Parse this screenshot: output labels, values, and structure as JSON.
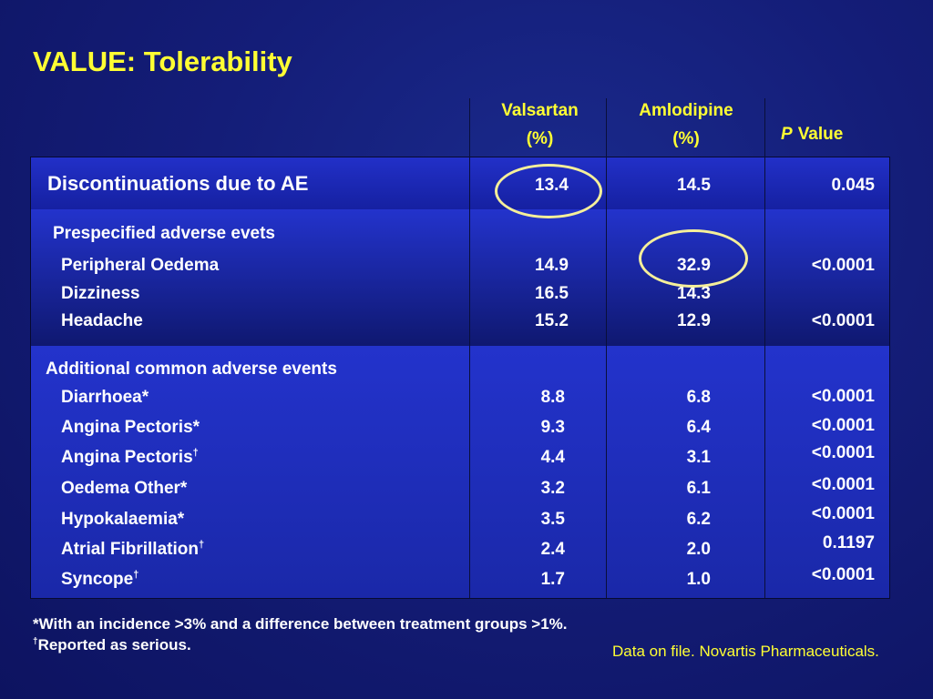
{
  "title": "VALUE: Tolerability",
  "columns": {
    "valsartan": [
      "Valsartan",
      "(%)"
    ],
    "amlodipine": [
      "Amlodipine",
      "(%)"
    ],
    "p_italic": "P",
    "p_rest": "Value"
  },
  "sections": {
    "discontinuations": {
      "label": "Discontinuations due to AE",
      "valsartan": "13.4",
      "amlodipine": "14.5",
      "p": "0.045"
    },
    "prespecified": {
      "label": "Prespecified adverse evets",
      "rows": [
        {
          "label": "Peripheral Oedema",
          "valsartan": "14.9",
          "amlodipine": "32.9",
          "p": "<0.0001"
        },
        {
          "label": "Dizziness",
          "valsartan": "16.5",
          "amlodipine": "14.3",
          "p": ""
        },
        {
          "label": "Headache",
          "valsartan": "15.2",
          "amlodipine": "12.9",
          "p": "<0.0001"
        }
      ]
    },
    "additional": {
      "label": "Additional common adverse events",
      "rows": [
        {
          "label": "Diarrhoea*",
          "valsartan": "8.8",
          "amlodipine": "6.8",
          "p": "<0.0001"
        },
        {
          "label": "Angina Pectoris*",
          "valsartan": "9.3",
          "amlodipine": "6.4",
          "p": "<0.0001"
        },
        {
          "label": "Angina Pectoris",
          "sup": "†",
          "valsartan": "4.4",
          "amlodipine": "3.1",
          "p": "<0.0001"
        },
        {
          "label": "Oedema Other*",
          "valsartan": "3.2",
          "amlodipine": "6.1",
          "p": "<0.0001"
        },
        {
          "label": "Hypokalaemia*",
          "valsartan": "3.5",
          "amlodipine": "6.2",
          "p": "<0.0001"
        },
        {
          "label": "Atrial Fibrillation",
          "sup": "†",
          "valsartan": "2.4",
          "amlodipine": "2.0",
          "p": "0.1197"
        },
        {
          "label": "Syncope",
          "sup": "†",
          "valsartan": "1.7",
          "amlodipine": "1.0",
          "p": "<0.0001"
        }
      ]
    }
  },
  "footnotes": {
    "line1": "*With an incidence >3% and a difference between treatment groups >1%.",
    "line2_sup": "†",
    "line2": "Reported as serious."
  },
  "source": "Data on file. Novartis Pharmaceuticals.",
  "colors": {
    "title": "#ffff33",
    "highlight": "#f5ef9a",
    "background": "#141d78"
  }
}
